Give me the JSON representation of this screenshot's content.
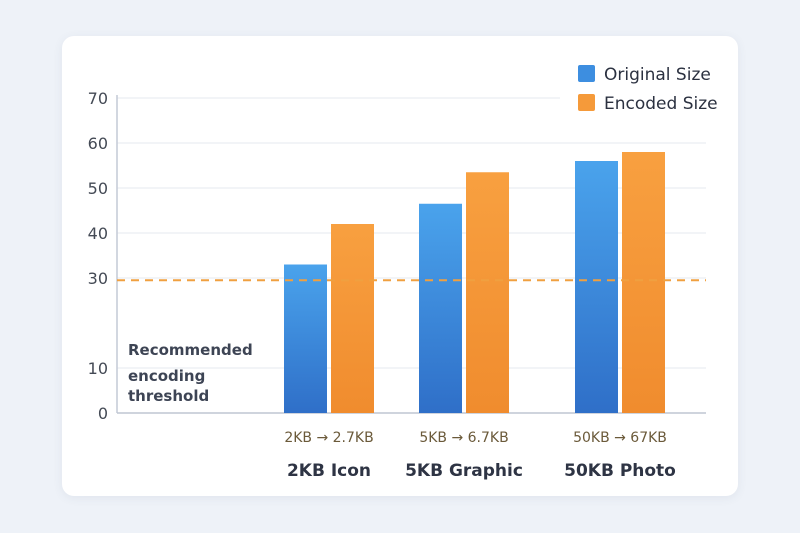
{
  "chart_data": {
    "type": "bar",
    "title": "",
    "xlabel": "",
    "ylabel": "",
    "ylim": [
      0,
      70
    ],
    "yticks": [
      "0",
      "10",
      "30",
      "40",
      "50",
      "60",
      "70"
    ],
    "ytick_values": [
      0,
      10,
      30,
      40,
      50,
      60,
      70
    ],
    "categories": [
      "2KB Icon",
      "5KB Graphic",
      "50KB Photo"
    ],
    "size_labels": [
      "2KB → 2.7KB",
      "5KB → 6.7KB",
      "50KB → 67KB"
    ],
    "series": [
      {
        "name": "Original Size",
        "values": [
          33,
          46.5,
          56
        ],
        "color": "#3d8ee0"
      },
      {
        "name": "Encoded Size",
        "values": [
          42,
          53.5,
          58
        ],
        "color": "#f59a3a"
      }
    ],
    "threshold": {
      "value": 29.5,
      "label_lines": [
        "Recommended",
        "encoding",
        "threshold"
      ],
      "color": "#f0a040"
    },
    "legend_position": "top-right",
    "grid": true
  }
}
